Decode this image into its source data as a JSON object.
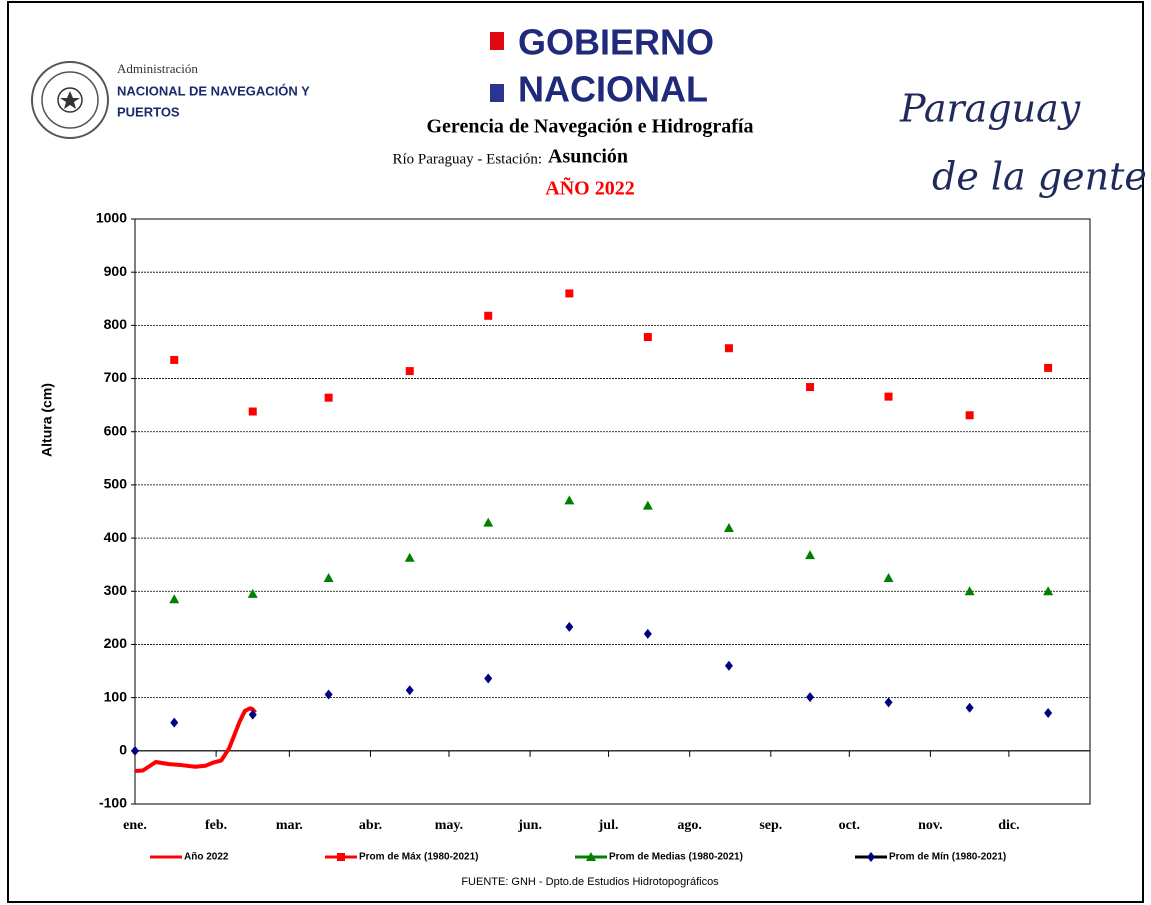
{
  "header": {
    "agency_small": "Administración",
    "agency_line1": "NACIONAL DE NAVEGACIÓN Y",
    "agency_line2": "PUERTOS",
    "gov_line1": "GOBIERNO",
    "gov_line2": "NACIONAL",
    "department": "Gerencia de Navegación e Hidrografía",
    "station_prefix": "Río Paraguay -  Estación:",
    "station": "Asunción",
    "year": "AÑO 2022",
    "slogan_line1": "Paraguay",
    "slogan_line2": "de la gente"
  },
  "chart_data": {
    "type": "scatter",
    "ylabel": "Altura (cm)",
    "source": "FUENTE: GNH - Dpto.de Estudios Hidrotopográficos",
    "xlim": [
      0,
      365
    ],
    "ylim": [
      -100,
      1000
    ],
    "yticks": [
      -100,
      0,
      100,
      200,
      300,
      400,
      500,
      600,
      700,
      800,
      900,
      1000
    ],
    "xticks": [
      {
        "value": 0,
        "label": "ene."
      },
      {
        "value": 31,
        "label": "feb."
      },
      {
        "value": 59,
        "label": "mar."
      },
      {
        "value": 90,
        "label": "abr."
      },
      {
        "value": 120,
        "label": "may."
      },
      {
        "value": 151,
        "label": "jun."
      },
      {
        "value": 181,
        "label": "jul."
      },
      {
        "value": 212,
        "label": "ago."
      },
      {
        "value": 243,
        "label": "sep."
      },
      {
        "value": 273,
        "label": "oct."
      },
      {
        "value": 304,
        "label": "nov."
      },
      {
        "value": 334,
        "label": "dic."
      }
    ],
    "grid": true,
    "series": [
      {
        "name": "Año 2022",
        "color": "#ff0000",
        "marker": "line",
        "x": [
          0,
          3,
          8,
          13,
          18,
          23,
          27,
          30,
          33,
          36,
          38,
          40,
          42,
          44,
          45,
          46
        ],
        "values": [
          -38,
          -37,
          -21,
          -25,
          -27,
          -30,
          -28,
          -22,
          -18,
          5,
          30,
          55,
          75,
          80,
          78,
          72
        ]
      },
      {
        "name": "Prom de Máx   (1980-2021)",
        "color": "#ff0000",
        "marker": "square",
        "x": [
          15,
          45,
          74,
          105,
          135,
          166,
          196,
          227,
          258,
          288,
          319,
          349
        ],
        "values": [
          735,
          638,
          664,
          714,
          818,
          860,
          778,
          757,
          684,
          666,
          631,
          720
        ]
      },
      {
        "name": "Prom de Medias  (1980-2021)",
        "color": "#008000",
        "marker": "triangle",
        "x": [
          15,
          45,
          74,
          105,
          135,
          166,
          196,
          227,
          258,
          288,
          319,
          349
        ],
        "values": [
          285,
          295,
          325,
          363,
          429,
          471,
          461,
          419,
          368,
          325,
          300,
          300
        ]
      },
      {
        "name": "Prom de Mín  (1980-2021)",
        "color": "#000080",
        "marker": "diamond",
        "x": [
          0,
          15,
          45,
          74,
          105,
          135,
          166,
          196,
          227,
          258,
          288,
          319,
          349
        ],
        "values": [
          0,
          53,
          68,
          106,
          114,
          136,
          233,
          220,
          160,
          101,
          91,
          81,
          71
        ]
      }
    ]
  }
}
